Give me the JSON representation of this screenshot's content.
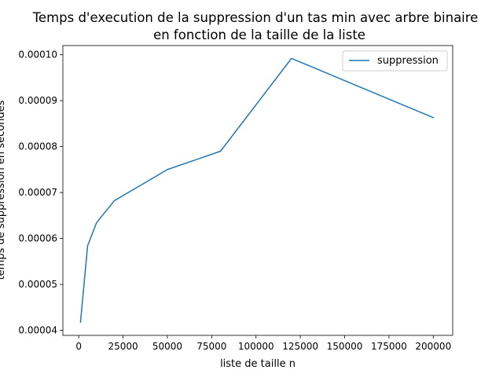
{
  "chart_data": {
    "type": "line",
    "title": "Temps d'execution de la suppression d'un tas min avec arbre binaire",
    "subtitle": "en fonction de la taille de la liste",
    "xlabel": "liste de taille n",
    "ylabel": "temps de suppression en secondes",
    "xlim": [
      -8950,
      210950
    ],
    "ylim": [
      3.89e-05,
      0.000102
    ],
    "xticks": [
      0,
      25000,
      50000,
      75000,
      100000,
      125000,
      150000,
      175000,
      200000
    ],
    "xtick_labels": [
      "0",
      "25000",
      "50000",
      "75000",
      "100000",
      "125000",
      "150000",
      "175000",
      "200000"
    ],
    "yticks": [
      4e-05,
      5e-05,
      6e-05,
      7e-05,
      8e-05,
      9e-05,
      0.0001
    ],
    "ytick_labels": [
      "0.00004",
      "0.00005",
      "0.00006",
      "0.00007",
      "0.00008",
      "0.00009",
      "0.00010"
    ],
    "grid": false,
    "legend_position": "top-right",
    "series": [
      {
        "name": "suppression",
        "color": "#1f77b4",
        "x": [
          1000,
          5000,
          10000,
          20000,
          50000,
          80000,
          120000,
          200000
        ],
        "y": [
          4.18e-05,
          5.84e-05,
          6.34e-05,
          6.82e-05,
          7.5e-05,
          7.9e-05,
          9.92e-05,
          8.63e-05
        ]
      }
    ]
  }
}
